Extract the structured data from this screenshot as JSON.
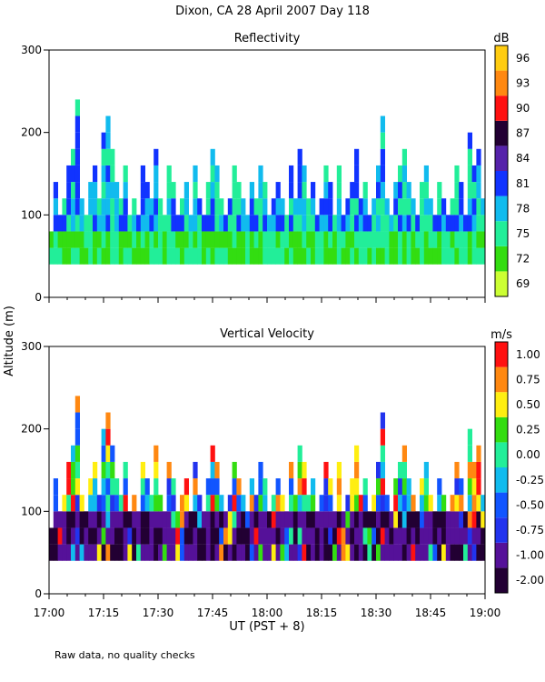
{
  "title": "Dixon, CA 28 April 2007  Day 118",
  "note": "Raw data, no quality checks",
  "chart_data": [
    {
      "type": "heatmap",
      "title": "Reflectivity",
      "ylabel": "Altitude (m)",
      "xlabel": "",
      "ylim": [
        0,
        300
      ],
      "yticks": [
        "0",
        "100",
        "200",
        "300"
      ],
      "colorbar": {
        "unit": "dB",
        "labels": [
          "69",
          "72",
          "75",
          "78",
          "81",
          "84",
          "87",
          "90",
          "93",
          "96"
        ],
        "colors": [
          "#ccff33",
          "#33dd11",
          "#22ee99",
          "#11bbee",
          "#1133ff",
          "#5522aa",
          "#220033",
          "#ff1111",
          "#ff8811",
          "#ffcc11"
        ]
      },
      "min_altitude": 40,
      "profile_tops": [
        80,
        140,
        100,
        120,
        160,
        180,
        240,
        120,
        100,
        140,
        160,
        120,
        200,
        220,
        180,
        140,
        120,
        160,
        100,
        120,
        100,
        160,
        140,
        120,
        180,
        120,
        100,
        160,
        140,
        100,
        120,
        140,
        100,
        160,
        120,
        100,
        140,
        180,
        160,
        120,
        100,
        120,
        160,
        140,
        120,
        100,
        140,
        120,
        160,
        140,
        100,
        120,
        140,
        120,
        100,
        160,
        120,
        180,
        160,
        120,
        140,
        100,
        120,
        160,
        140,
        100,
        160,
        100,
        120,
        140,
        180,
        120,
        140,
        100,
        120,
        160,
        220,
        120,
        100,
        140,
        160,
        180,
        140,
        120,
        100,
        140,
        160,
        120,
        100,
        140,
        120,
        100,
        120,
        160,
        140,
        100,
        200,
        160,
        180,
        120
      ]
    },
    {
      "type": "heatmap",
      "title": "Vertical Velocity",
      "xlabel": "UT  (PST + 8)",
      "ylim": [
        0,
        300
      ],
      "yticks": [
        "0",
        "100",
        "200",
        "300"
      ],
      "xticks": [
        "17:00",
        "17:15",
        "17:30",
        "17:45",
        "18:00",
        "18:15",
        "18:30",
        "18:45",
        "19:00"
      ],
      "colorbar": {
        "unit": "m/s",
        "labels": [
          "-2.00",
          "-1.00",
          "-0.75",
          "-0.50",
          "-0.25",
          "0.00",
          "0.25",
          "0.50",
          "0.75",
          "1.00"
        ],
        "colors": [
          "#220033",
          "#551199",
          "#2233ee",
          "#1155ff",
          "#11bbee",
          "#22ee99",
          "#33dd11",
          "#ffee11",
          "#ff8811",
          "#ff1111"
        ]
      },
      "min_altitude": 40,
      "profile_tops": [
        80,
        140,
        100,
        120,
        160,
        180,
        240,
        120,
        100,
        140,
        160,
        120,
        200,
        220,
        180,
        140,
        120,
        160,
        100,
        120,
        100,
        160,
        140,
        120,
        180,
        120,
        100,
        160,
        140,
        100,
        120,
        140,
        100,
        160,
        120,
        100,
        140,
        180,
        160,
        120,
        100,
        120,
        160,
        140,
        120,
        100,
        140,
        120,
        160,
        140,
        100,
        120,
        140,
        120,
        100,
        160,
        120,
        180,
        160,
        120,
        140,
        100,
        120,
        160,
        140,
        100,
        160,
        100,
        120,
        140,
        180,
        120,
        140,
        100,
        120,
        160,
        220,
        120,
        100,
        140,
        160,
        180,
        140,
        120,
        100,
        140,
        160,
        120,
        100,
        140,
        120,
        100,
        120,
        160,
        140,
        100,
        200,
        160,
        180,
        120
      ]
    }
  ]
}
